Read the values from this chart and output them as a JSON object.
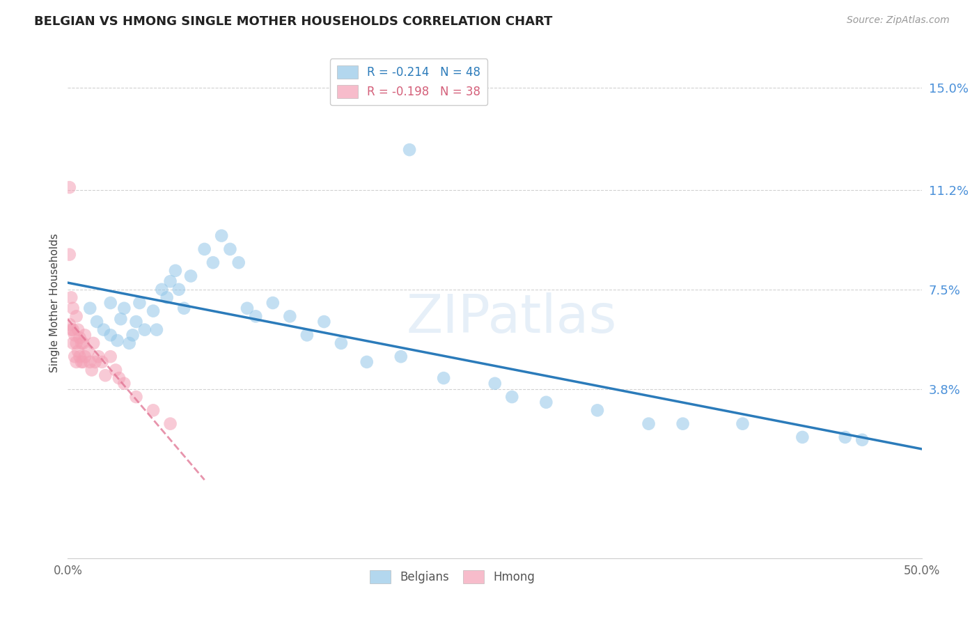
{
  "title": "BELGIAN VS HMONG SINGLE MOTHER HOUSEHOLDS CORRELATION CHART",
  "source": "Source: ZipAtlas.com",
  "ylabel": "Single Mother Households",
  "xlim": [
    0.0,
    0.5
  ],
  "ylim": [
    -0.025,
    0.165
  ],
  "yticks": [
    0.038,
    0.075,
    0.112,
    0.15
  ],
  "ytick_labels": [
    "3.8%",
    "7.5%",
    "11.2%",
    "15.0%"
  ],
  "xticks": [
    0.0,
    0.1,
    0.2,
    0.3,
    0.4,
    0.5
  ],
  "xtick_labels": [
    "0.0%",
    "",
    "",
    "",
    "",
    "50.0%"
  ],
  "belgian_r": -0.214,
  "belgian_n": 48,
  "hmong_r": -0.198,
  "hmong_n": 38,
  "belgian_color": "#93c6e8",
  "hmong_color": "#f4a0b5",
  "belgian_line_color": "#2b7bba",
  "hmong_line_color": "#e07090",
  "watermark": "ZIPatlas",
  "belgians_x": [
    0.013,
    0.017,
    0.021,
    0.025,
    0.025,
    0.029,
    0.031,
    0.033,
    0.036,
    0.038,
    0.04,
    0.042,
    0.045,
    0.05,
    0.052,
    0.055,
    0.058,
    0.06,
    0.063,
    0.065,
    0.068,
    0.072,
    0.08,
    0.085,
    0.09,
    0.095,
    0.1,
    0.105,
    0.11,
    0.12,
    0.13,
    0.14,
    0.15,
    0.16,
    0.175,
    0.195,
    0.22,
    0.25,
    0.26,
    0.28,
    0.31,
    0.34,
    0.36,
    0.395,
    0.43,
    0.455,
    0.465,
    0.2
  ],
  "belgians_y": [
    0.068,
    0.063,
    0.06,
    0.058,
    0.07,
    0.056,
    0.064,
    0.068,
    0.055,
    0.058,
    0.063,
    0.07,
    0.06,
    0.067,
    0.06,
    0.075,
    0.072,
    0.078,
    0.082,
    0.075,
    0.068,
    0.08,
    0.09,
    0.085,
    0.095,
    0.09,
    0.085,
    0.068,
    0.065,
    0.07,
    0.065,
    0.058,
    0.063,
    0.055,
    0.048,
    0.05,
    0.042,
    0.04,
    0.035,
    0.033,
    0.03,
    0.025,
    0.025,
    0.025,
    0.02,
    0.02,
    0.019,
    0.127
  ],
  "hmong_x": [
    0.001,
    0.001,
    0.001,
    0.002,
    0.002,
    0.003,
    0.003,
    0.003,
    0.004,
    0.004,
    0.005,
    0.005,
    0.005,
    0.006,
    0.006,
    0.007,
    0.007,
    0.008,
    0.008,
    0.009,
    0.009,
    0.01,
    0.01,
    0.012,
    0.013,
    0.014,
    0.015,
    0.016,
    0.018,
    0.02,
    0.022,
    0.025,
    0.028,
    0.03,
    0.033,
    0.04,
    0.05,
    0.06
  ],
  "hmong_y": [
    0.113,
    0.088,
    0.062,
    0.072,
    0.06,
    0.068,
    0.06,
    0.055,
    0.058,
    0.05,
    0.065,
    0.055,
    0.048,
    0.06,
    0.052,
    0.057,
    0.05,
    0.055,
    0.048,
    0.055,
    0.048,
    0.058,
    0.05,
    0.052,
    0.048,
    0.045,
    0.055,
    0.048,
    0.05,
    0.048,
    0.043,
    0.05,
    0.045,
    0.042,
    0.04,
    0.035,
    0.03,
    0.025
  ],
  "belgian_line_x0": 0.0,
  "belgian_line_y0": 0.07,
  "belgian_line_x1": 0.5,
  "belgian_line_y1": 0.038,
  "hmong_line_x0": 0.0,
  "hmong_line_y0": 0.065,
  "hmong_line_x1": 0.1,
  "hmong_line_y1": 0.04
}
